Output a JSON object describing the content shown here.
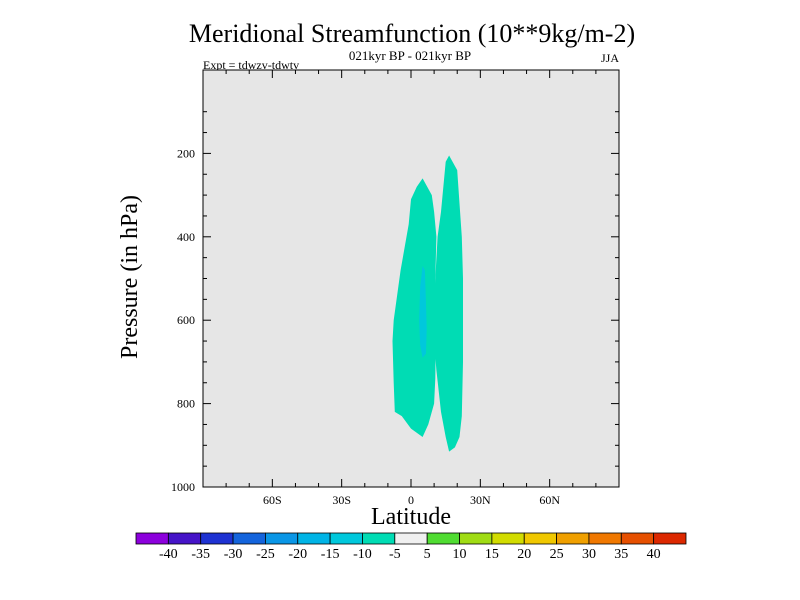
{
  "chart_data": {
    "type": "contour",
    "title": "Meridional Streamfunction (10**9kg/m-2)",
    "subtitle": "021kyr BP - 021kyr BP",
    "experiment": "Expt = tdwzv-tdwtv",
    "season": "JJA",
    "xlabel": "Latitude",
    "ylabel": "Pressure (in hPa)",
    "xlim": [
      -90,
      90
    ],
    "ylim": [
      0,
      1000
    ],
    "y_inverted": true,
    "x_ticks": [
      -60,
      -30,
      0,
      30,
      60
    ],
    "x_tick_labels": [
      "60S",
      "30S",
      "0",
      "30N",
      "60N"
    ],
    "y_ticks": [
      200,
      400,
      600,
      800,
      1000
    ],
    "y_tick_labels": [
      "200",
      "400",
      "600",
      "800",
      "1000"
    ],
    "background_color": "#e6e6e6",
    "contour_regions": [
      {
        "name": "cell-west",
        "level_range": [
          -10,
          -5
        ],
        "color": "#00dcb4",
        "polygon": [
          [
            -7.5,
            600
          ],
          [
            -4.5,
            480
          ],
          [
            -1,
            370
          ],
          [
            0,
            310
          ],
          [
            2.5,
            280
          ],
          [
            5,
            260
          ],
          [
            9,
            300
          ],
          [
            10,
            340
          ],
          [
            11,
            400
          ],
          [
            10.5,
            500
          ],
          [
            10.8,
            600
          ],
          [
            10.5,
            740
          ],
          [
            10,
            800
          ],
          [
            7.5,
            850
          ],
          [
            5,
            880
          ],
          [
            0,
            860
          ],
          [
            -4,
            830
          ],
          [
            -7,
            820
          ],
          [
            -7.5,
            750
          ],
          [
            -8,
            650
          ]
        ]
      },
      {
        "name": "cell-east",
        "level_range": [
          -10,
          -5
        ],
        "color": "#00dcb4",
        "polygon": [
          [
            9.5,
            600
          ],
          [
            10.5,
            500
          ],
          [
            11.5,
            400
          ],
          [
            13,
            340
          ],
          [
            15,
            220
          ],
          [
            16.5,
            205
          ],
          [
            20,
            240
          ],
          [
            22,
            400
          ],
          [
            22.5,
            500
          ],
          [
            22.5,
            700
          ],
          [
            22,
            830
          ],
          [
            21,
            880
          ],
          [
            19,
            905
          ],
          [
            16.5,
            915
          ],
          [
            15,
            880
          ],
          [
            13,
            820
          ],
          [
            11,
            720
          ],
          [
            10,
            650
          ]
        ]
      },
      {
        "name": "cell-core",
        "level_range": [
          -15,
          -10
        ],
        "color": "#00c8dc",
        "polygon": [
          [
            3.5,
            600
          ],
          [
            4,
            520
          ],
          [
            5,
            470
          ],
          [
            6,
            480
          ],
          [
            6.5,
            560
          ],
          [
            6.8,
            620
          ],
          [
            6.5,
            680
          ],
          [
            5,
            690
          ],
          [
            4,
            660
          ]
        ]
      }
    ],
    "colorbar": {
      "levels": [
        "-40",
        "-35",
        "-30",
        "-25",
        "-20",
        "-15",
        "-10",
        "-5",
        "5",
        "10",
        "15",
        "20",
        "25",
        "30",
        "35",
        "40"
      ],
      "colors": [
        "#8c00dc",
        "#4614c8",
        "#1e32d2",
        "#1464dc",
        "#0a96e6",
        "#00b4e6",
        "#00c8dc",
        "#00dcb4",
        "#f0f0f0",
        "#50dc32",
        "#a0dc14",
        "#d2dc00",
        "#f0c800",
        "#f0a000",
        "#f07800",
        "#e65000",
        "#dc2800"
      ]
    }
  }
}
